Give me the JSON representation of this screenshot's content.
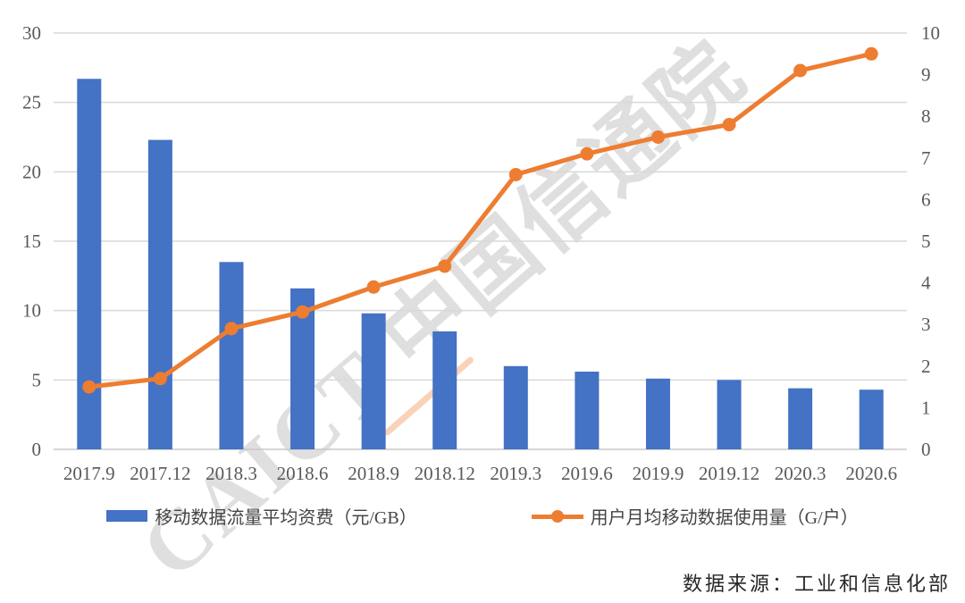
{
  "watermark": {
    "text": "CAICT 中国信通院"
  },
  "source": {
    "text": "数据来源：工业和信息化部"
  },
  "chart_data": {
    "type": "bar",
    "subtype": "dual-axis bar + line",
    "categories": [
      "2017.9",
      "2017.12",
      "2018.3",
      "2018.6",
      "2018.9",
      "2018.12",
      "2019.3",
      "2019.6",
      "2019.9",
      "2019.12",
      "2020.3",
      "2020.6"
    ],
    "series": [
      {
        "name": "移动数据流量平均资费（元/GB）",
        "type": "bar",
        "axis": "left",
        "values": [
          26.7,
          22.3,
          13.5,
          11.6,
          9.8,
          8.5,
          6.0,
          5.6,
          5.1,
          5.0,
          4.4,
          4.3
        ]
      },
      {
        "name": "用户月均移动数据使用量（G/户）",
        "type": "line",
        "axis": "right",
        "values": [
          1.5,
          1.7,
          2.9,
          3.3,
          3.9,
          4.4,
          6.6,
          7.1,
          7.5,
          7.8,
          9.1,
          9.5
        ]
      }
    ],
    "left_axis": {
      "min": 0,
      "max": 30,
      "step": 5,
      "ticks": [
        0,
        5,
        10,
        15,
        20,
        25,
        30
      ]
    },
    "right_axis": {
      "min": 0,
      "max": 10,
      "step": 1,
      "ticks": [
        0,
        1,
        2,
        3,
        4,
        5,
        6,
        7,
        8,
        9,
        10
      ]
    },
    "grid": true,
    "legend_position": "bottom",
    "colors": {
      "bar": "#4472C4",
      "line": "#ED7D31",
      "gridline": "#D9D9D9",
      "zero_line": "#C9C9C9",
      "tick_text": "#595959"
    },
    "title": "",
    "xlabel": "",
    "ylabel_left": "元/GB",
    "ylabel_right": "G/户"
  }
}
